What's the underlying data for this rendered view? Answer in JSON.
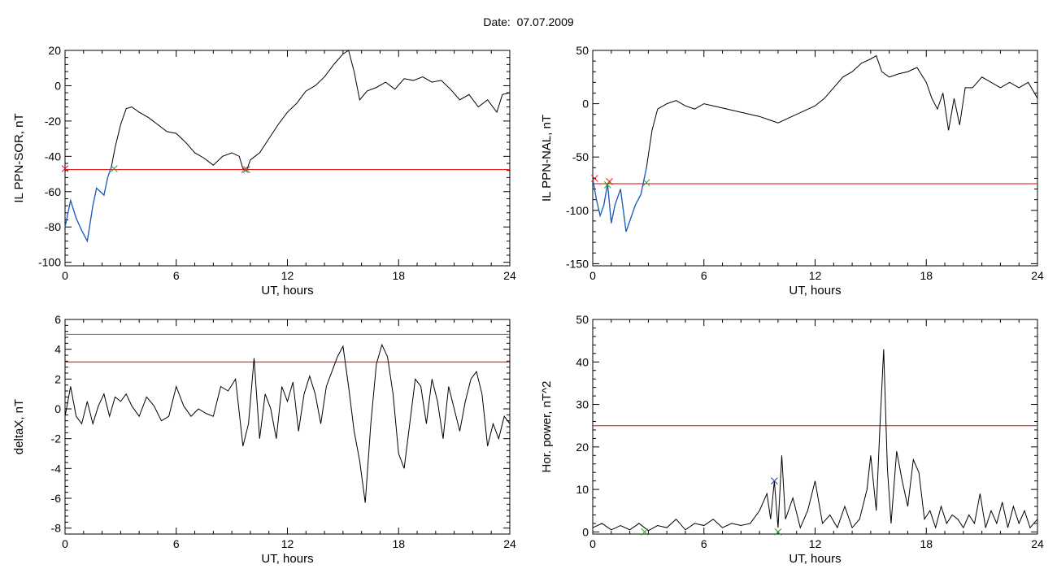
{
  "date_label": "Date:",
  "date_value": "07.07.2009",
  "colors": {
    "series": "#000000",
    "highlight": "#1f5fbf",
    "threshold": "#e00000",
    "threshold2": "#1a9a9a",
    "marker_green": "#2ca02c",
    "marker_red": "#d62728",
    "marker_blue": "#1f3fbf"
  },
  "chart_data": [
    {
      "type": "line",
      "xlabel": "UT, hours",
      "ylabel": "IL PPN-SOR, nT",
      "xlim": [
        0,
        24
      ],
      "ylim": [
        -102,
        20
      ],
      "xticks": [
        0,
        6,
        12,
        18,
        24
      ],
      "yticks": [
        20,
        0,
        -20,
        -40,
        -60,
        -80,
        -100
      ],
      "series": [
        {
          "x": [
            0,
            0.3,
            0.6,
            0.9,
            1.2,
            1.5,
            1.7,
            1.9,
            2.1,
            2.3,
            2.5,
            2.7,
            3.0,
            3.3,
            3.6,
            4.0,
            4.5,
            5.0,
            5.5,
            6.0,
            6.5,
            7.0,
            7.5,
            8.0,
            8.5,
            9.0,
            9.4,
            9.6,
            9.8,
            10.0,
            10.5,
            11.0,
            11.5,
            12.0,
            12.5,
            13.0,
            13.5,
            14.0,
            14.5,
            15.0,
            15.3,
            15.6,
            15.9,
            16.3,
            16.8,
            17.3,
            17.8,
            18.3,
            18.8,
            19.3,
            19.8,
            20.3,
            20.8,
            21.3,
            21.8,
            22.3,
            22.8,
            23.3,
            23.6,
            24.0
          ],
          "y": [
            -80,
            -65,
            -75,
            -82,
            -88,
            -68,
            -58,
            -60,
            -62,
            -52,
            -46,
            -35,
            -22,
            -13,
            -12,
            -15,
            -18,
            -22,
            -26,
            -27,
            -32,
            -38,
            -41,
            -45,
            -40,
            -38,
            -40,
            -47,
            -48,
            -42,
            -38,
            -30,
            -22,
            -15,
            -10,
            -3,
            0,
            5,
            12,
            18,
            20,
            8,
            -8,
            -3,
            -1,
            2,
            -2,
            4,
            3,
            5,
            2,
            3,
            -2,
            -8,
            -5,
            -12,
            -8,
            -15,
            -5,
            -4
          ]
        }
      ],
      "highlight_ranges": [
        [
          0,
          2.6
        ]
      ],
      "threshold_lines": [
        {
          "y": -47.5,
          "color": "#e00000"
        }
      ],
      "markers": [
        {
          "x": 0,
          "y": -47,
          "color": "#d62728"
        },
        {
          "x": 2.65,
          "y": -47,
          "color": "#2ca02c"
        },
        {
          "x": 9.7,
          "y": -47.5,
          "color": "#d62728"
        },
        {
          "x": 9.8,
          "y": -47.5,
          "color": "#2ca02c"
        }
      ]
    },
    {
      "type": "line",
      "xlabel": "UT, hours",
      "ylabel": "IL PPN-NAL, nT",
      "xlim": [
        0,
        24
      ],
      "ylim": [
        -152,
        50
      ],
      "xticks": [
        0,
        6,
        12,
        18,
        24
      ],
      "yticks": [
        50,
        0,
        -50,
        -100,
        -150
      ],
      "series": [
        {
          "x": [
            0,
            0.2,
            0.4,
            0.6,
            0.8,
            1.0,
            1.2,
            1.5,
            1.8,
            2.0,
            2.3,
            2.6,
            2.9,
            3.2,
            3.5,
            4.0,
            4.5,
            5.0,
            5.5,
            6.0,
            6.5,
            7.0,
            7.5,
            8.0,
            8.5,
            9.0,
            9.5,
            10.0,
            10.5,
            11.0,
            11.5,
            12.0,
            12.5,
            13.0,
            13.5,
            14.0,
            14.5,
            15.0,
            15.3,
            15.6,
            16.0,
            16.5,
            17.0,
            17.5,
            18.0,
            18.3,
            18.6,
            18.9,
            19.2,
            19.5,
            19.8,
            20.1,
            20.5,
            21.0,
            21.5,
            22.0,
            22.5,
            23.0,
            23.5,
            24.0
          ],
          "y": [
            -70,
            -90,
            -105,
            -95,
            -75,
            -112,
            -95,
            -80,
            -120,
            -110,
            -95,
            -85,
            -60,
            -25,
            -5,
            0,
            3,
            -2,
            -5,
            0,
            -2,
            -4,
            -6,
            -8,
            -10,
            -12,
            -15,
            -18,
            -14,
            -10,
            -6,
            -2,
            5,
            15,
            25,
            30,
            38,
            42,
            45,
            30,
            25,
            28,
            30,
            34,
            20,
            5,
            -5,
            10,
            -25,
            5,
            -20,
            15,
            15,
            25,
            20,
            15,
            20,
            15,
            20,
            5
          ]
        }
      ],
      "highlight_ranges": [
        [
          0,
          2.9
        ]
      ],
      "threshold_lines": [
        {
          "y": -75,
          "color": "#e00000"
        }
      ],
      "markers": [
        {
          "x": 0.1,
          "y": -70,
          "color": "#d62728"
        },
        {
          "x": 0.9,
          "y": -73,
          "color": "#d62728"
        },
        {
          "x": 0.8,
          "y": -76,
          "color": "#2ca02c"
        },
        {
          "x": 2.9,
          "y": -74,
          "color": "#2ca02c"
        }
      ]
    },
    {
      "type": "line",
      "xlabel": "UT, hours",
      "ylabel": "deltaX, nT",
      "xlim": [
        0,
        24
      ],
      "ylim": [
        -8.4,
        6
      ],
      "xticks": [
        0,
        6,
        12,
        18,
        24
      ],
      "yticks": [
        6,
        4,
        2,
        0,
        -2,
        -4,
        -6,
        -8
      ],
      "series": [
        {
          "x": [
            0,
            0.3,
            0.6,
            0.9,
            1.2,
            1.5,
            1.8,
            2.1,
            2.4,
            2.7,
            3.0,
            3.3,
            3.6,
            4.0,
            4.4,
            4.8,
            5.2,
            5.6,
            6.0,
            6.4,
            6.8,
            7.2,
            7.6,
            8.0,
            8.4,
            8.8,
            9.2,
            9.6,
            9.9,
            10.2,
            10.5,
            10.8,
            11.1,
            11.4,
            11.7,
            12.0,
            12.3,
            12.6,
            12.9,
            13.2,
            13.5,
            13.8,
            14.1,
            14.4,
            14.7,
            15.0,
            15.3,
            15.6,
            15.9,
            16.2,
            16.5,
            16.8,
            17.1,
            17.4,
            17.7,
            18.0,
            18.3,
            18.6,
            18.9,
            19.2,
            19.5,
            19.8,
            20.1,
            20.4,
            20.7,
            21.0,
            21.3,
            21.6,
            21.9,
            22.2,
            22.5,
            22.8,
            23.1,
            23.4,
            23.7,
            24.0
          ],
          "y": [
            -0.5,
            1.5,
            -0.5,
            -1.0,
            0.5,
            -1.0,
            0.2,
            1.0,
            -0.5,
            0.8,
            0.5,
            1.0,
            0.2,
            -0.5,
            0.8,
            0.2,
            -0.8,
            -0.5,
            1.5,
            0.2,
            -0.5,
            0.0,
            -0.3,
            -0.5,
            1.5,
            1.2,
            2.0,
            -2.5,
            -1.0,
            3.4,
            -2.0,
            1.0,
            0.0,
            -2.0,
            1.5,
            0.5,
            1.8,
            -1.5,
            1.0,
            2.2,
            1.0,
            -1.0,
            1.5,
            2.5,
            3.5,
            4.2,
            1.5,
            -1.5,
            -3.5,
            -6.3,
            -1.0,
            3.0,
            4.3,
            3.5,
            1.0,
            -3.0,
            -4.0,
            -1.0,
            2.0,
            1.5,
            -1.0,
            2.0,
            0.5,
            -2.0,
            1.5,
            0.0,
            -1.5,
            0.5,
            2.0,
            2.5,
            1.0,
            -2.5,
            -1.0,
            -2.0,
            -0.5,
            -1.0
          ]
        }
      ],
      "threshold_lines": [
        {
          "y": 5.0,
          "color": "#1a9a9a"
        },
        {
          "y": 3.15,
          "color": "#e00000"
        }
      ],
      "markers": []
    },
    {
      "type": "line",
      "xlabel": "UT, hours",
      "ylabel": "Hor. power, nT^2",
      "xlim": [
        0,
        24
      ],
      "ylim": [
        -0.5,
        50
      ],
      "xticks": [
        0,
        6,
        12,
        18,
        24
      ],
      "yticks": [
        50,
        40,
        30,
        20,
        10,
        0
      ],
      "series": [
        {
          "x": [
            0,
            0.5,
            1.0,
            1.5,
            2.0,
            2.5,
            3.0,
            3.5,
            4.0,
            4.5,
            5.0,
            5.5,
            6.0,
            6.5,
            7.0,
            7.5,
            8.0,
            8.5,
            9.0,
            9.4,
            9.6,
            9.8,
            10.0,
            10.2,
            10.4,
            10.8,
            11.2,
            11.6,
            12.0,
            12.4,
            12.8,
            13.2,
            13.6,
            14.0,
            14.4,
            14.8,
            15.0,
            15.3,
            15.5,
            15.7,
            15.9,
            16.1,
            16.4,
            16.7,
            17.0,
            17.3,
            17.6,
            17.9,
            18.2,
            18.5,
            18.8,
            19.1,
            19.4,
            19.7,
            20.0,
            20.3,
            20.6,
            20.9,
            21.2,
            21.5,
            21.8,
            22.1,
            22.4,
            22.7,
            23.0,
            23.3,
            23.6,
            24.0
          ],
          "y": [
            1,
            2,
            0.5,
            1.5,
            0.5,
            2,
            0.3,
            1.5,
            1,
            3,
            0.5,
            2,
            1.5,
            3,
            1,
            2,
            1.5,
            2,
            5,
            9,
            3,
            12,
            1,
            18,
            3,
            8,
            1,
            5,
            12,
            2,
            4,
            1,
            6,
            1,
            3,
            10,
            18,
            5,
            25,
            43,
            15,
            2,
            19,
            12,
            6,
            17,
            14,
            3,
            5,
            1,
            6,
            2,
            4,
            3,
            1,
            4,
            2,
            9,
            1,
            5,
            2,
            7,
            1,
            6,
            2,
            5,
            1,
            3
          ]
        }
      ],
      "threshold_lines": [
        {
          "y": 25,
          "color": "#e00000"
        }
      ],
      "markers": [
        {
          "x": 9.8,
          "y": 12,
          "color": "#1f3fbf"
        },
        {
          "x": 2.8,
          "y": 0,
          "color": "#2ca02c"
        },
        {
          "x": 10.0,
          "y": 0,
          "color": "#2ca02c"
        }
      ]
    }
  ]
}
